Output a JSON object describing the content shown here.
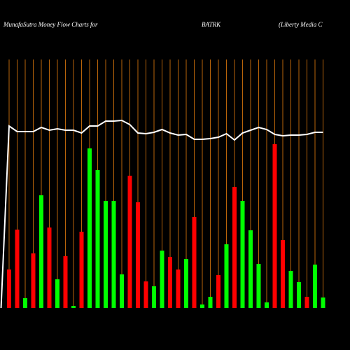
{
  "chart_data": {
    "type": "bar",
    "title": "MunafaSutra  Money Flow  Charts for",
    "ticker": "BATRK",
    "company": "(Liberty Media  C",
    "categories": [
      null,
      null,
      null,
      null,
      null,
      null,
      null,
      null,
      null,
      null,
      null,
      null,
      null,
      null,
      null,
      null,
      null,
      null,
      null,
      null,
      null,
      null,
      null,
      null,
      null,
      null,
      null,
      null,
      null,
      null,
      null,
      null,
      null,
      null,
      null,
      null,
      null,
      null,
      null,
      null,
      null
    ],
    "values": [
      null,
      55,
      112,
      14,
      78,
      161,
      115,
      41,
      74,
      3,
      109,
      228,
      197,
      153,
      153,
      48,
      189,
      151,
      38,
      31,
      82,
      73,
      55,
      70,
      130,
      5,
      16,
      47,
      91,
      173,
      153,
      111,
      63,
      8,
      234,
      97,
      53,
      37,
      16,
      62,
      15
    ],
    "colors": [
      null,
      "#ff0000",
      "#ff0000",
      "#00ff00",
      "#ff0000",
      "#00ff00",
      "#ff0000",
      "#00ff00",
      "#ff0000",
      "#00ff00",
      "#ff0000",
      "#00ff00",
      "#00ff00",
      "#00ff00",
      "#00ff00",
      "#00ff00",
      "#ff0000",
      "#ff0000",
      "#ff0000",
      "#00ff00",
      "#00ff00",
      "#ff0000",
      "#ff0000",
      "#00ff00",
      "#ff0000",
      "#00ff00",
      "#00ff00",
      "#ff0000",
      "#00ff00",
      "#ff0000",
      "#00ff00",
      "#00ff00",
      "#00ff00",
      "#00ff00",
      "#ff0000",
      "#ff0000",
      "#00ff00",
      "#00ff00",
      "#ff0000",
      "#00ff00",
      "#00ff00"
    ],
    "line": {
      "color": "#ffffff",
      "values": [
        0,
        260,
        252,
        252,
        252,
        258,
        254,
        256,
        254,
        254,
        250,
        260,
        260,
        267,
        267,
        268,
        262,
        250,
        249,
        251,
        255,
        250,
        247,
        248,
        241,
        241,
        242,
        244,
        249,
        240,
        250,
        254,
        258,
        255,
        248,
        246,
        247,
        247,
        248,
        251,
        251
      ]
    },
    "grid_color": "#b8640a"
  }
}
